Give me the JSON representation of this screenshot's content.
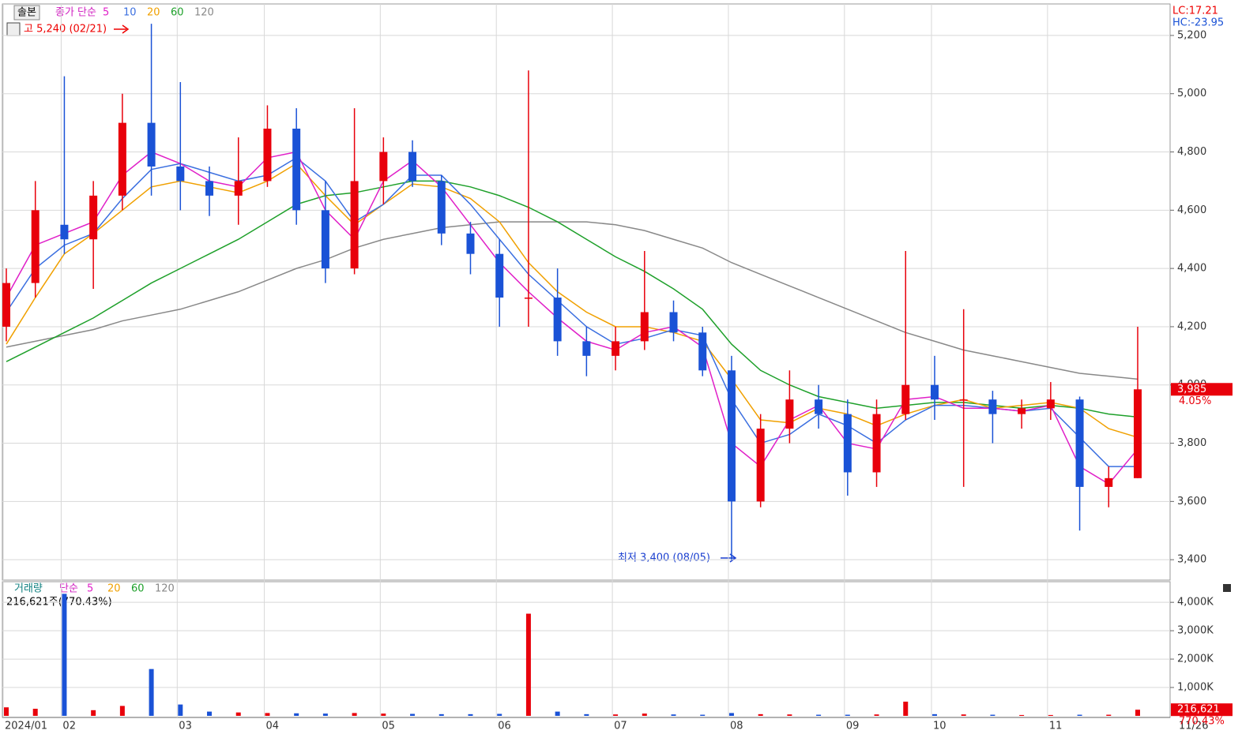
{
  "chart_data": [
    {
      "type": "candlestick",
      "panel_label": "솔본",
      "legend_title": "종가 단순",
      "categories": [
        "2024/01",
        null,
        "02",
        null,
        null,
        null,
        "03",
        null,
        null,
        "04",
        null,
        null,
        null,
        "05",
        null,
        null,
        null,
        "06",
        null,
        null,
        null,
        "07",
        null,
        null,
        null,
        "08",
        null,
        null,
        null,
        "09",
        null,
        null,
        "10",
        null,
        null,
        null,
        "11",
        null,
        null,
        null
      ],
      "last_date": "11/26",
      "open": [
        4200,
        4350,
        4550,
        4500,
        4650,
        4900,
        4750,
        4700,
        4650,
        4700,
        4880,
        4600,
        4400,
        4700,
        4800,
        4700,
        4520,
        4450,
        4300,
        4300,
        4150,
        4100,
        4150,
        4250,
        4180,
        4050,
        3600,
        3850,
        3950,
        3900,
        3700,
        3900,
        4000,
        3950,
        3950,
        3900,
        3920,
        3950,
        3650,
        3680
      ],
      "high": [
        4400,
        4700,
        5060,
        4700,
        5000,
        5240,
        5040,
        4750,
        4850,
        4960,
        4950,
        4700,
        4950,
        4850,
        4840,
        4720,
        4560,
        4500,
        5080,
        4400,
        4200,
        4200,
        4460,
        4290,
        4200,
        4100,
        3900,
        4050,
        4000,
        3950,
        3950,
        4460,
        4100,
        4260,
        3980,
        3950,
        4010,
        3960,
        3720,
        4200
      ],
      "low": [
        4150,
        4300,
        4450,
        4330,
        4600,
        4650,
        4600,
        4580,
        4550,
        4680,
        4550,
        4350,
        4380,
        4620,
        4680,
        4480,
        4380,
        4200,
        4200,
        4100,
        4030,
        4050,
        4120,
        4150,
        4030,
        3400,
        3580,
        3800,
        3850,
        3620,
        3650,
        3880,
        3880,
        3650,
        3800,
        3850,
        3880,
        3500,
        3580,
        3680
      ],
      "close": [
        4350,
        4600,
        4500,
        4650,
        4900,
        4750,
        4700,
        4650,
        4700,
        4880,
        4600,
        4400,
        4700,
        4800,
        4700,
        4520,
        4450,
        4300,
        4300,
        4150,
        4100,
        4150,
        4250,
        4180,
        4050,
        3600,
        3850,
        3950,
        3900,
        3700,
        3900,
        4000,
        3950,
        3950,
        3900,
        3920,
        3950,
        3650,
        3680,
        3985
      ],
      "up_color": "#e8000b",
      "down_color": "#1a52d6",
      "series": [
        {
          "name": "5",
          "color": "#e020c8",
          "values": [
            4300,
            4480,
            4520,
            4560,
            4720,
            4800,
            4760,
            4700,
            4680,
            4780,
            4800,
            4600,
            4500,
            4700,
            4770,
            4680,
            4550,
            4420,
            4320,
            4230,
            4150,
            4120,
            4180,
            4200,
            4130,
            3800,
            3720,
            3880,
            3930,
            3800,
            3780,
            3950,
            3960,
            3920,
            3920,
            3910,
            3930,
            3720,
            3660,
            3780
          ]
        },
        {
          "name": "10",
          "color": "#3b6fe0",
          "values": [
            4250,
            4400,
            4480,
            4520,
            4640,
            4740,
            4760,
            4730,
            4700,
            4720,
            4780,
            4700,
            4560,
            4620,
            4720,
            4720,
            4620,
            4500,
            4380,
            4290,
            4200,
            4140,
            4160,
            4190,
            4170,
            3950,
            3800,
            3830,
            3900,
            3860,
            3800,
            3880,
            3930,
            3930,
            3920,
            3910,
            3920,
            3820,
            3720,
            3720
          ]
        },
        {
          "name": "20",
          "color": "#f0a000",
          "values": [
            4140,
            4300,
            4450,
            4520,
            4600,
            4680,
            4700,
            4680,
            4660,
            4700,
            4760,
            4650,
            4550,
            4620,
            4690,
            4680,
            4640,
            4560,
            4420,
            4320,
            4250,
            4200,
            4200,
            4180,
            4150,
            4020,
            3880,
            3870,
            3920,
            3900,
            3860,
            3900,
            3930,
            3950,
            3920,
            3930,
            3940,
            3920,
            3850,
            3820
          ]
        },
        {
          "name": "60",
          "color": "#1ea02a",
          "values": [
            4080,
            4130,
            4180,
            4230,
            4290,
            4350,
            4400,
            4450,
            4500,
            4560,
            4620,
            4650,
            4660,
            4680,
            4700,
            4700,
            4680,
            4650,
            4610,
            4560,
            4500,
            4440,
            4390,
            4330,
            4260,
            4140,
            4050,
            4000,
            3960,
            3940,
            3920,
            3930,
            3940,
            3940,
            3930,
            3920,
            3930,
            3920,
            3900,
            3890
          ]
        },
        {
          "name": "120",
          "color": "#888888",
          "values": [
            4130,
            4150,
            4170,
            4190,
            4220,
            4240,
            4260,
            4290,
            4320,
            4360,
            4400,
            4430,
            4470,
            4500,
            4520,
            4540,
            4550,
            4560,
            4560,
            4560,
            4560,
            4550,
            4530,
            4500,
            4470,
            4420,
            4380,
            4340,
            4300,
            4260,
            4220,
            4180,
            4150,
            4120,
            4100,
            4080,
            4060,
            4040,
            4030,
            4020
          ]
        }
      ],
      "ylim": [
        3330,
        5300
      ],
      "yticks": [
        {
          "value": 3400,
          "label": "3,400"
        },
        {
          "value": 3600,
          "label": "3,600"
        },
        {
          "value": 3800,
          "label": "3,800"
        },
        {
          "value": 4000,
          "label": "4,000"
        },
        {
          "value": 4200,
          "label": "4,200"
        },
        {
          "value": 4400,
          "label": "4,400"
        },
        {
          "value": 4600,
          "label": "4,600"
        },
        {
          "value": 4800,
          "label": "4,800"
        },
        {
          "value": 5000,
          "label": "5,000"
        },
        {
          "value": 5200,
          "label": "5,200"
        }
      ],
      "grid": true,
      "indicators": [
        "LC:17.21",
        "HC:-23.95"
      ],
      "high_note": "고 5,240 (02/21)",
      "low_note": "최저 3,400 (08/05)",
      "last_price": {
        "value": 3985,
        "label": "3,985"
      },
      "change": "4.05%"
    },
    {
      "type": "bar",
      "title": "거래량",
      "legend_title": "단순",
      "ma_legend": [
        {
          "name": "5",
          "color": "#e020c8"
        },
        {
          "name": "20",
          "color": "#f0a000"
        },
        {
          "name": "60",
          "color": "#1ea02a"
        },
        {
          "name": "120",
          "color": "#888888"
        }
      ],
      "readout": "216,621주(770.43%)",
      "values": [
        300000,
        250000,
        4300000,
        200000,
        350000,
        1650000,
        400000,
        150000,
        120000,
        100000,
        90000,
        80000,
        100000,
        80000,
        70000,
        60000,
        60000,
        70000,
        3600000,
        150000,
        60000,
        50000,
        80000,
        50000,
        40000,
        100000,
        60000,
        50000,
        40000,
        40000,
        50000,
        500000,
        60000,
        50000,
        40000,
        30000,
        30000,
        40000,
        40000,
        216621
      ],
      "ylim": [
        0,
        4700000
      ],
      "yticks": [
        {
          "value": 1000000,
          "label": "1,000K"
        },
        {
          "value": 2000000,
          "label": "2,000K"
        },
        {
          "value": 3000000,
          "label": "3,000K"
        },
        {
          "value": 4000000,
          "label": "4,000K"
        }
      ],
      "grid": true,
      "last": {
        "value": 216621,
        "label": "216,621"
      },
      "change": "770.43%"
    }
  ]
}
